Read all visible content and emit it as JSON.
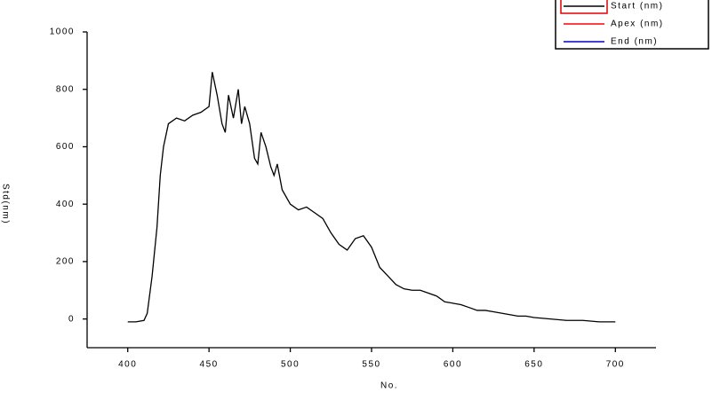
{
  "chart_data": {
    "type": "line",
    "x_label": "No.",
    "y_label": "Std(nm)",
    "x": [
      400,
      405,
      410,
      412,
      415,
      418,
      420,
      422,
      425,
      430,
      435,
      440,
      445,
      450,
      452,
      455,
      458,
      460,
      462,
      465,
      468,
      470,
      472,
      475,
      478,
      480,
      482,
      485,
      488,
      490,
      492,
      495,
      500,
      505,
      510,
      515,
      520,
      525,
      530,
      535,
      540,
      545,
      550,
      555,
      560,
      565,
      570,
      575,
      580,
      585,
      590,
      595,
      600,
      605,
      610,
      615,
      620,
      625,
      630,
      635,
      640,
      645,
      650,
      660,
      670,
      680,
      690,
      700
    ],
    "series": [
      {
        "name": "Start (nm)",
        "color": "#000000",
        "values": [
          -10,
          -10,
          -5,
          20,
          150,
          320,
          500,
          600,
          680,
          700,
          690,
          710,
          720,
          740,
          860,
          780,
          680,
          650,
          780,
          700,
          800,
          680,
          740,
          680,
          560,
          540,
          650,
          600,
          530,
          500,
          540,
          450,
          400,
          380,
          390,
          370,
          350,
          300,
          260,
          240,
          280,
          290,
          250,
          180,
          150,
          120,
          105,
          100,
          100,
          90,
          80,
          60,
          55,
          50,
          40,
          30,
          30,
          25,
          20,
          15,
          10,
          10,
          5,
          0,
          -5,
          -5,
          -10,
          -10
        ]
      },
      {
        "name": "Apex (nm)",
        "color": "#ff0000"
      },
      {
        "name": "End (nm)",
        "color": "#0000cc"
      }
    ],
    "xlim": [
      375,
      725
    ],
    "xticks": [
      400,
      450,
      500,
      550,
      600,
      650,
      700
    ],
    "ylim": [
      -100,
      1000
    ],
    "yticks": [
      0,
      200,
      400,
      600,
      800,
      1000
    ]
  }
}
